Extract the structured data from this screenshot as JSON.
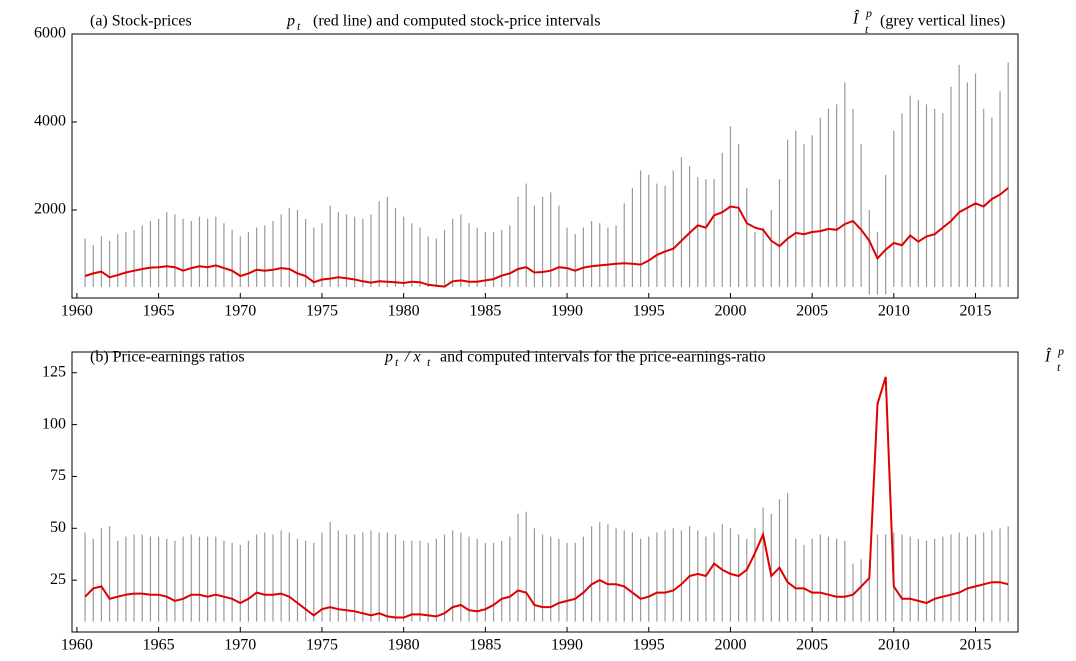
{
  "chart_data": [
    {
      "type": "line",
      "title": "(a) Stock-prices",
      "annotations": [
        "p",
        "t",
        "(red line) and computed stock-price intervals",
        "Î",
        "p",
        "t",
        "(grey vertical lines)"
      ],
      "x": [
        1960.5,
        1961,
        1961.5,
        1962,
        1962.5,
        1963,
        1963.5,
        1964,
        1964.5,
        1965,
        1965.5,
        1966,
        1966.5,
        1967,
        1967.5,
        1968,
        1968.5,
        1969,
        1969.5,
        1970,
        1970.5,
        1971,
        1971.5,
        1972,
        1972.5,
        1973,
        1973.5,
        1974,
        1974.5,
        1975,
        1975.5,
        1976,
        1976.5,
        1977,
        1977.5,
        1978,
        1978.5,
        1979,
        1979.5,
        1980,
        1980.5,
        1981,
        1981.5,
        1982,
        1982.5,
        1983,
        1983.5,
        1984,
        1984.5,
        1985,
        1985.5,
        1986,
        1986.5,
        1987,
        1987.5,
        1988,
        1988.5,
        1989,
        1989.5,
        1990,
        1990.5,
        1991,
        1991.5,
        1992,
        1992.5,
        1993,
        1993.5,
        1994,
        1994.5,
        1995,
        1995.5,
        1996,
        1996.5,
        1997,
        1997.5,
        1998,
        1998.5,
        1999,
        1999.5,
        2000,
        2000.5,
        2001,
        2001.5,
        2002,
        2002.5,
        2003,
        2003.5,
        2004,
        2004.5,
        2005,
        2005.5,
        2006,
        2006.5,
        2007,
        2007.5,
        2008,
        2008.5,
        2009,
        2009.5,
        2010,
        2010.5,
        2011,
        2011.5,
        2012,
        2012.5,
        2013,
        2013.5,
        2014,
        2014.5,
        2015,
        2015.5,
        2016,
        2016.5,
        2017
      ],
      "series": [
        {
          "color": "#e00000",
          "values": [
            500,
            560,
            600,
            470,
            520,
            580,
            620,
            660,
            690,
            700,
            720,
            700,
            620,
            680,
            720,
            700,
            740,
            680,
            620,
            500,
            560,
            640,
            620,
            640,
            680,
            660,
            560,
            500,
            360,
            420,
            440,
            470,
            450,
            420,
            380,
            350,
            380,
            370,
            360,
            340,
            370,
            360,
            300,
            280,
            260,
            380,
            400,
            370,
            370,
            400,
            430,
            510,
            560,
            660,
            700,
            580,
            590,
            620,
            700,
            680,
            620,
            690,
            720,
            740,
            760,
            780,
            790,
            780,
            760,
            850,
            980,
            1060,
            1120,
            1300,
            1480,
            1650,
            1600,
            1880,
            1950,
            2080,
            2050,
            1700,
            1600,
            1550,
            1300,
            1180,
            1350,
            1480,
            1450,
            1500,
            1520,
            1570,
            1550,
            1680,
            1750,
            1550,
            1300,
            900,
            1100,
            1250,
            1200,
            1420,
            1280,
            1400,
            1450,
            1600,
            1750,
            1950,
            2050,
            2150,
            2080,
            2250,
            2350,
            2500
          ]
        }
      ],
      "intervals": {
        "color": "#999999",
        "low": [
          250,
          250,
          250,
          250,
          250,
          250,
          250,
          250,
          250,
          250,
          250,
          250,
          250,
          250,
          250,
          250,
          250,
          250,
          250,
          250,
          250,
          250,
          250,
          250,
          250,
          250,
          250,
          250,
          250,
          250,
          250,
          250,
          250,
          250,
          250,
          250,
          250,
          250,
          250,
          250,
          250,
          250,
          250,
          250,
          250,
          250,
          250,
          250,
          250,
          250,
          250,
          250,
          250,
          250,
          250,
          250,
          250,
          250,
          250,
          250,
          250,
          250,
          250,
          250,
          250,
          250,
          250,
          250,
          250,
          250,
          250,
          250,
          250,
          250,
          250,
          250,
          250,
          250,
          250,
          250,
          250,
          250,
          250,
          250,
          250,
          250,
          250,
          250,
          250,
          250,
          250,
          250,
          250,
          250,
          250,
          250,
          80,
          80,
          80,
          250,
          250,
          250,
          250,
          250,
          250,
          250,
          250,
          250,
          250,
          250,
          250,
          250,
          250,
          250
        ],
        "high": [
          1350,
          1200,
          1400,
          1300,
          1450,
          1500,
          1550,
          1650,
          1750,
          1800,
          1950,
          1900,
          1800,
          1750,
          1850,
          1800,
          1850,
          1700,
          1550,
          1400,
          1500,
          1600,
          1650,
          1750,
          1900,
          2050,
          2000,
          1800,
          1600,
          1700,
          2100,
          1950,
          1900,
          1850,
          1800,
          1900,
          2200,
          2300,
          2050,
          1850,
          1700,
          1600,
          1400,
          1350,
          1550,
          1800,
          1900,
          1700,
          1600,
          1500,
          1500,
          1550,
          1650,
          2300,
          2600,
          2100,
          2300,
          2400,
          2100,
          1600,
          1450,
          1600,
          1750,
          1700,
          1600,
          1650,
          2150,
          2500,
          2900,
          2800,
          2600,
          2550,
          2900,
          3200,
          3000,
          2750,
          2700,
          2700,
          3300,
          3900,
          3500,
          2500,
          1500,
          1600,
          2000,
          2700,
          3600,
          3800,
          3500,
          3700,
          4100,
          4300,
          4400,
          4900,
          4300,
          3500,
          2000,
          1500,
          2800,
          3800,
          4200,
          4600,
          4500,
          4400,
          4300,
          4200,
          4800,
          5300,
          4900,
          5100,
          4300,
          4100,
          4700,
          5350
        ]
      },
      "xlim": [
        1959.7,
        2017.6
      ],
      "xticks": [
        1960,
        1965,
        1970,
        1975,
        1980,
        1985,
        1990,
        1995,
        2000,
        2005,
        2010,
        2015
      ],
      "ylim": [
        0,
        6000
      ],
      "yticks": [
        2000,
        4000,
        6000
      ]
    },
    {
      "type": "line",
      "title": "(b) Price-earnings ratios",
      "annotations": [
        "p",
        "t",
        "/ x",
        "t",
        "and computed intervals for the price-earnings-ratio",
        "Î",
        "p",
        "t"
      ],
      "x": [
        1960.5,
        1961,
        1961.5,
        1962,
        1962.5,
        1963,
        1963.5,
        1964,
        1964.5,
        1965,
        1965.5,
        1966,
        1966.5,
        1967,
        1967.5,
        1968,
        1968.5,
        1969,
        1969.5,
        1970,
        1970.5,
        1971,
        1971.5,
        1972,
        1972.5,
        1973,
        1973.5,
        1974,
        1974.5,
        1975,
        1975.5,
        1976,
        1976.5,
        1977,
        1977.5,
        1978,
        1978.5,
        1979,
        1979.5,
        1980,
        1980.5,
        1981,
        1981.5,
        1982,
        1982.5,
        1983,
        1983.5,
        1984,
        1984.5,
        1985,
        1985.5,
        1986,
        1986.5,
        1987,
        1987.5,
        1988,
        1988.5,
        1989,
        1989.5,
        1990,
        1990.5,
        1991,
        1991.5,
        1992,
        1992.5,
        1993,
        1993.5,
        1994,
        1994.5,
        1995,
        1995.5,
        1996,
        1996.5,
        1997,
        1997.5,
        1998,
        1998.5,
        1999,
        1999.5,
        2000,
        2000.5,
        2001,
        2001.5,
        2002,
        2002.5,
        2003,
        2003.5,
        2004,
        2004.5,
        2005,
        2005.5,
        2006,
        2006.5,
        2007,
        2007.5,
        2008,
        2008.5,
        2009,
        2009.5,
        2010,
        2010.5,
        2011,
        2011.5,
        2012,
        2012.5,
        2013,
        2013.5,
        2014,
        2014.5,
        2015,
        2015.5,
        2016,
        2016.5,
        2017
      ],
      "series": [
        {
          "color": "#e00000",
          "values": [
            17,
            21,
            22,
            16,
            17,
            18,
            18.5,
            18.5,
            18,
            18,
            17,
            15,
            16,
            18,
            18,
            17,
            18,
            17,
            16,
            14,
            16,
            19,
            18,
            18,
            18.5,
            17,
            14,
            11,
            8,
            11,
            12,
            11,
            10.5,
            10,
            9,
            8,
            9,
            7.5,
            7,
            7,
            8.5,
            8.5,
            8,
            7.5,
            9,
            12,
            13,
            10.5,
            10,
            11,
            13,
            16,
            17,
            20,
            19,
            13,
            12,
            12,
            14,
            15,
            16,
            19,
            23,
            25,
            23,
            23,
            22,
            19,
            16,
            17,
            19,
            19,
            20,
            23,
            27,
            28,
            27,
            33,
            30,
            28,
            27,
            30,
            38,
            47,
            27,
            31,
            24,
            21,
            21,
            19,
            19,
            18,
            17,
            17,
            18,
            22,
            26,
            110,
            123,
            22,
            16,
            16,
            15,
            14,
            16,
            17,
            18,
            19,
            21,
            22,
            23,
            24,
            24,
            23
          ]
        }
      ],
      "intervals": {
        "color": "#999999",
        "low": [
          5,
          5,
          5,
          5,
          5,
          5,
          5,
          5,
          5,
          5,
          5,
          5,
          5,
          5,
          5,
          5,
          5,
          5,
          5,
          5,
          5,
          5,
          5,
          5,
          5,
          5,
          5,
          5,
          5,
          5,
          5,
          5,
          5,
          5,
          5,
          5,
          5,
          5,
          5,
          5,
          5,
          5,
          5,
          5,
          5,
          5,
          5,
          5,
          5,
          5,
          5,
          5,
          5,
          5,
          5,
          5,
          5,
          5,
          5,
          5,
          5,
          5,
          5,
          5,
          5,
          5,
          5,
          5,
          5,
          5,
          5,
          5,
          5,
          5,
          5,
          5,
          5,
          5,
          5,
          5,
          5,
          5,
          5,
          5,
          5,
          5,
          5,
          5,
          5,
          5,
          5,
          5,
          5,
          5,
          5,
          5,
          5,
          5,
          5,
          5,
          5,
          5,
          5,
          5,
          5,
          5,
          5,
          5,
          5,
          5,
          5,
          5,
          5,
          5
        ],
        "high": [
          48,
          45,
          50,
          51,
          44,
          46,
          47,
          47,
          46,
          46,
          45,
          44,
          46,
          47,
          46,
          46,
          46,
          44,
          43,
          42,
          44,
          47,
          48,
          47,
          49,
          48,
          45,
          44,
          43,
          48,
          53,
          49,
          47,
          47,
          48,
          49,
          48,
          48,
          47,
          44,
          44,
          44,
          43,
          45,
          47,
          49,
          48,
          46,
          45,
          43,
          43,
          44,
          46,
          57,
          58,
          50,
          47,
          46,
          45,
          43,
          43,
          46,
          51,
          53,
          52,
          50,
          49,
          48,
          45,
          46,
          48,
          49,
          50,
          49,
          51,
          49,
          46,
          48,
          52,
          50,
          47,
          45,
          50,
          60,
          57,
          64,
          67,
          45,
          42,
          45,
          47,
          46,
          45,
          44,
          33,
          35,
          30,
          47,
          47,
          48,
          47,
          46,
          45,
          44,
          45,
          46,
          47,
          48,
          46,
          47,
          48,
          49,
          50,
          51
        ]
      },
      "xlim": [
        1959.7,
        2017.6
      ],
      "xticks": [
        1960,
        1965,
        1970,
        1975,
        1980,
        1985,
        1990,
        1995,
        2000,
        2005,
        2010,
        2015
      ],
      "ylim": [
        0,
        135
      ],
      "yticks": [
        25,
        50,
        75,
        100,
        125
      ]
    }
  ]
}
